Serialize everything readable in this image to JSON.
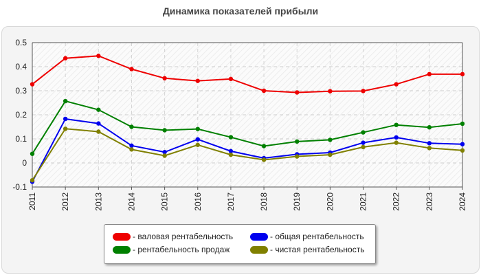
{
  "title": "Динамика показателей прибыли",
  "chart_data": {
    "type": "line",
    "categories": [
      "2011",
      "2012",
      "2013",
      "2014",
      "2015",
      "2016",
      "2017",
      "2018",
      "2019",
      "2020",
      "2021",
      "2022",
      "2023",
      "2024"
    ],
    "series": [
      {
        "name": "- валовая рентабельность",
        "color": "#ee0000",
        "values": [
          0.327,
          0.435,
          0.445,
          0.39,
          0.352,
          0.341,
          0.349,
          0.3,
          0.293,
          0.298,
          0.299,
          0.327,
          0.369,
          0.369
        ]
      },
      {
        "name": "- рентабельность продаж",
        "color": "#008000",
        "values": [
          0.038,
          0.257,
          0.221,
          0.15,
          0.136,
          0.141,
          0.107,
          0.07,
          0.089,
          0.096,
          0.127,
          0.158,
          0.148,
          0.163
        ]
      },
      {
        "name": "- общая рентабельность",
        "color": "#0000ee",
        "values": [
          -0.078,
          0.183,
          0.164,
          0.072,
          0.045,
          0.098,
          0.049,
          0.02,
          0.036,
          0.043,
          0.084,
          0.106,
          0.082,
          0.078
        ]
      },
      {
        "name": "- чистая рентабельность",
        "color": "#808000",
        "values": [
          -0.072,
          0.142,
          0.13,
          0.056,
          0.03,
          0.075,
          0.034,
          0.013,
          0.027,
          0.034,
          0.066,
          0.084,
          0.062,
          0.052
        ]
      }
    ],
    "y_ticks": [
      "0.5",
      "0.4",
      "0.3",
      "0.2",
      "0.1",
      "0",
      "-0.1"
    ],
    "ylim": [
      -0.1,
      0.5
    ],
    "grid": true,
    "legend_position": "bottom"
  }
}
